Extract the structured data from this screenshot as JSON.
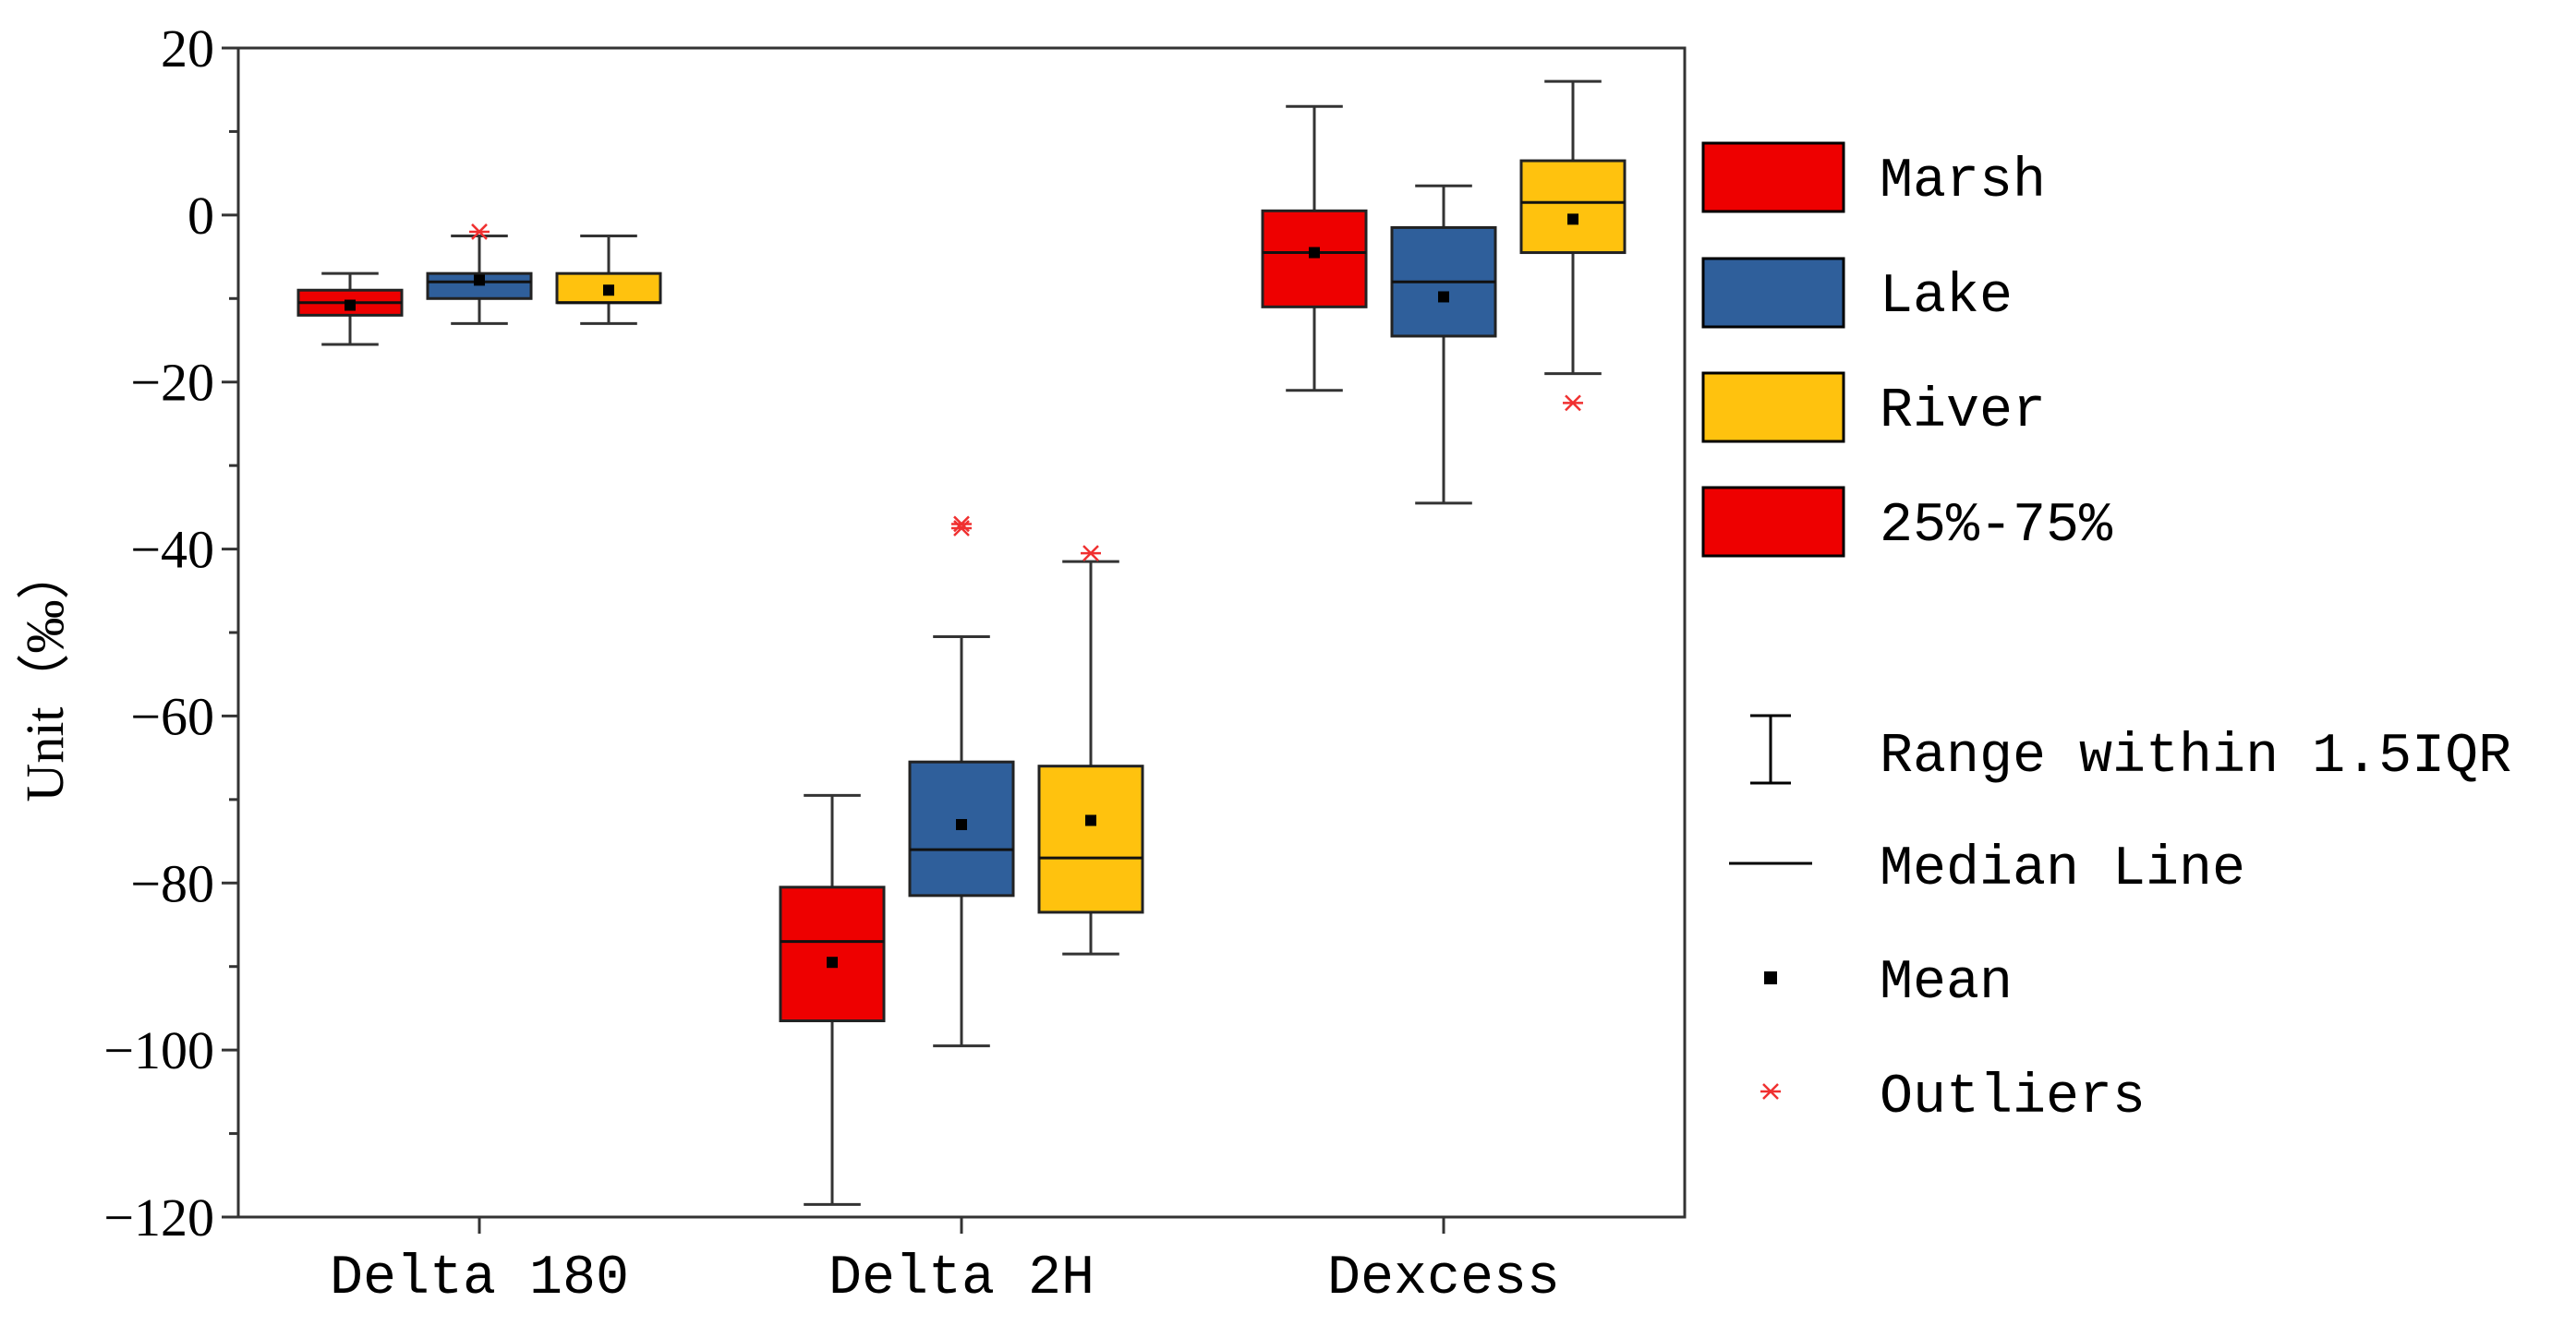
{
  "chart_data": {
    "type": "box",
    "title": "",
    "xlabel": "",
    "ylabel": "Unit（‰）",
    "ylim": [
      -120,
      20
    ],
    "yticks": [
      20,
      0,
      -20,
      -40,
      -60,
      -80,
      -100,
      -120
    ],
    "ytick_labels": [
      "20",
      "0",
      "−20",
      "−40",
      "−60",
      "−80",
      "−100",
      "−120"
    ],
    "categories": [
      "Delta 180",
      "Delta 2H",
      "Dexcess"
    ],
    "series": [
      {
        "name": "Marsh",
        "color": "#ee0000",
        "boxes": [
          {
            "min": -15.5,
            "q1": -12,
            "median": -10.5,
            "q3": -9,
            "max": -7,
            "mean": -10.8,
            "outliers": []
          },
          {
            "min": -118.5,
            "q1": -96.5,
            "median": -87,
            "q3": -80.5,
            "max": -69.5,
            "mean": -89.5,
            "outliers": []
          },
          {
            "min": -21,
            "q1": -11,
            "median": -4.5,
            "q3": 0.5,
            "max": 13,
            "mean": -4.5,
            "outliers": []
          }
        ]
      },
      {
        "name": "Lake",
        "color": "#2f5f9b",
        "boxes": [
          {
            "min": -13,
            "q1": -10,
            "median": -8,
            "q3": -7,
            "max": -2.5,
            "mean": -7.8,
            "outliers": [
              -2
            ]
          },
          {
            "min": -99.5,
            "q1": -81.5,
            "median": -76,
            "q3": -65.5,
            "max": -50.5,
            "mean": -73,
            "outliers": [
              -37,
              -37.5
            ]
          },
          {
            "min": -34.5,
            "q1": -14.5,
            "median": -8,
            "q3": -1.5,
            "max": 3.5,
            "mean": -9.8,
            "outliers": []
          }
        ]
      },
      {
        "name": "River",
        "color": "#ffc20e",
        "boxes": [
          {
            "min": -13,
            "q1": -10.5,
            "median": -10.5,
            "q3": -7,
            "max": -2.5,
            "mean": -9,
            "outliers": []
          },
          {
            "min": -88.5,
            "q1": -83.5,
            "median": -77,
            "q3": -66,
            "max": -41.5,
            "mean": -72.5,
            "outliers": [
              -40.5
            ]
          },
          {
            "min": -19,
            "q1": -4.5,
            "median": 1.5,
            "q3": 6.5,
            "max": 16,
            "mean": -0.5,
            "outliers": [
              -22.5
            ]
          }
        ]
      }
    ],
    "legend": {
      "position": "right",
      "items": [
        {
          "label": "Marsh",
          "color": "#ee0000"
        },
        {
          "label": "Lake",
          "color": "#2f5f9b"
        },
        {
          "label": "River",
          "color": "#ffc20e"
        },
        {
          "label": "25%-75%",
          "color": "#ee0000"
        },
        {
          "label": "Range within 1.5IQR"
        },
        {
          "label": "Median Line"
        },
        {
          "label": "Mean"
        },
        {
          "label": "Outliers"
        }
      ]
    }
  }
}
